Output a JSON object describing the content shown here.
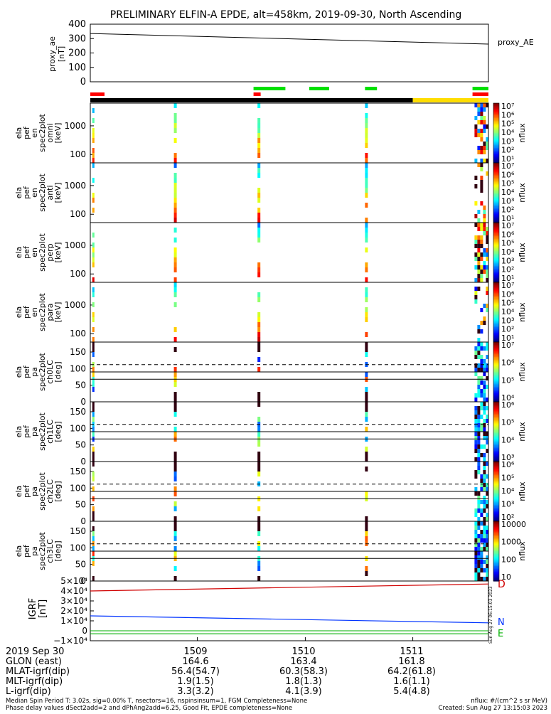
{
  "title": "PRELIMINARY ELFIN-A EPDE, alt=458km, 2019-09-30, North Ascending",
  "colors": {
    "red": "#ff0000",
    "green": "#00e000",
    "black": "#000000",
    "yellow": "#ffdd00",
    "line_red": "#d00000",
    "line_blue": "#0033ff",
    "line_green": "#00b000"
  },
  "panels": [
    {
      "id": "proxy_ae",
      "ylabel_lines": [
        "proxy_ae",
        "[nT]"
      ],
      "right_label": "proxy_AE",
      "ticks": [
        "400",
        "300",
        "200",
        "100",
        "0"
      ]
    },
    {
      "id": "omni",
      "ylabel_lines": [
        "ela",
        "pef",
        "en",
        "spec2plot",
        "omni",
        "[keV]"
      ],
      "ticks": [
        "1000",
        "100"
      ],
      "cbar_ticks": [
        "10⁷",
        "10⁶",
        "10⁵",
        "10⁴",
        "10³",
        "10²",
        "10¹"
      ],
      "cbar_label": "nflux"
    },
    {
      "id": "anti",
      "ylabel_lines": [
        "ela",
        "pef",
        "en",
        "spec2plot",
        "anti",
        "[keV]"
      ],
      "ticks": [
        "1000",
        "100"
      ],
      "cbar_ticks": [
        "10⁷",
        "10⁶",
        "10⁵",
        "10⁴",
        "10³",
        "10²",
        "10¹"
      ],
      "cbar_label": "nflux"
    },
    {
      "id": "perp",
      "ylabel_lines": [
        "ela",
        "pef",
        "en",
        "spec2plot",
        "perp",
        "[keV]"
      ],
      "ticks": [
        "1000",
        "100"
      ],
      "cbar_ticks": [
        "10⁷",
        "10⁶",
        "10⁵",
        "10⁴",
        "10³",
        "10²",
        "10¹"
      ],
      "cbar_label": "nflux"
    },
    {
      "id": "para",
      "ylabel_lines": [
        "ela",
        "pef",
        "en",
        "spec2plot",
        "para",
        "[keV]"
      ],
      "ticks": [
        "1000",
        "100"
      ],
      "cbar_ticks": [
        "10⁷",
        "10⁶",
        "10⁵",
        "10⁴",
        "10³",
        "10²",
        "10¹"
      ],
      "cbar_label": "nflux"
    },
    {
      "id": "ch0LC",
      "ylabel_lines": [
        "ela",
        "pef",
        "pa",
        "spec2plot",
        "ch0LC",
        "[deg]"
      ],
      "ticks": [
        "150",
        "100",
        "50",
        "0"
      ],
      "cbar_ticks": [
        "10⁷",
        "10⁶",
        "10⁵",
        "10⁴"
      ],
      "cbar_label": "nflux"
    },
    {
      "id": "ch1LC",
      "ylabel_lines": [
        "ela",
        "pef",
        "pa",
        "spec2plot",
        "ch1LC",
        "[deg]"
      ],
      "ticks": [
        "150",
        "100",
        "50",
        "0"
      ],
      "cbar_ticks": [
        "10⁶",
        "10⁵",
        "10⁴",
        "10³"
      ],
      "cbar_label": "nflux"
    },
    {
      "id": "ch2LC",
      "ylabel_lines": [
        "ela",
        "pef",
        "pa",
        "spec2plot",
        "ch2LC",
        "[deg]"
      ],
      "ticks": [
        "150",
        "100",
        "50",
        "0"
      ],
      "cbar_ticks": [
        "10⁶",
        "10⁵",
        "10⁴",
        "10³",
        "10²"
      ],
      "cbar_label": "nflux"
    },
    {
      "id": "ch3LC",
      "ylabel_lines": [
        "ela",
        "pef",
        "pa",
        "spec2plot",
        "ch3LC",
        "[deg]"
      ],
      "ticks": [
        "150",
        "100",
        "50",
        "0"
      ],
      "cbar_ticks": [
        "10000",
        "1000",
        "100",
        "10"
      ],
      "cbar_label": "nflux"
    },
    {
      "id": "igrf",
      "ylabel_lines": [
        "IGRF",
        "[nT]"
      ],
      "ticks": [
        "5×10⁴",
        "4×10⁴",
        "3×10⁴",
        "2×10⁴",
        "1×10⁴",
        "0",
        "−1×10⁴"
      ],
      "components": [
        "D",
        "N",
        "E"
      ]
    }
  ],
  "axis_footer": {
    "rows": [
      {
        "label": "2019 Sep 30",
        "values": [
          "1509",
          "1510",
          "1511"
        ]
      },
      {
        "label": "GLON (east)",
        "values": [
          "164.6",
          "163.4",
          "161.8"
        ]
      },
      {
        "label": "MLAT-igrf(dip)",
        "values": [
          "56.4(54.7)",
          "60.3(58.3)",
          "64.2(61.8)"
        ]
      },
      {
        "label": "MLT-igrf(dip)",
        "values": [
          "1.9(1.5)",
          "1.8(1.3)",
          "1.6(1.1)"
        ]
      },
      {
        "label": "L-igrf(dip)",
        "values": [
          "3.3(3.2)",
          "4.1(3.9)",
          "5.4(4.8)"
        ]
      }
    ]
  },
  "side_stamp": "Sun Aug 27 06:15:03 2023",
  "footnotes": {
    "line1": "Median Spin Period T: 3.02s, sig=0.00% T, nsectors=16, nspinsinsum=1, FGM Completeness=None",
    "line2": "Phase delay values dSect2add=2 and dPhAng2add=6.25, Good Fit, EPDE completeness=None",
    "nflux": "nflux: #/(cm^2 s sr MeV)",
    "created": "Created: Sun Aug 27 13:15:03 2023"
  },
  "chart_data": {
    "type": "heatmap",
    "title": "PRELIMINARY ELFIN-A EPDE, alt=458km, 2019-09-30, North Ascending",
    "x_tick_labels": [
      "1509",
      "1510",
      "1511"
    ],
    "proxy_ae": {
      "x": [
        "start",
        "end"
      ],
      "y": [
        335,
        262
      ],
      "ylim": [
        0,
        400
      ]
    },
    "igrf": {
      "ylim": [
        -10000,
        50000
      ],
      "series": [
        {
          "name": "D",
          "start": 40000,
          "end": 47000
        },
        {
          "name": "N",
          "start": 15000,
          "end": 8000
        },
        {
          "name": "E",
          "start": -3000,
          "end": -3000
        }
      ]
    }
  }
}
